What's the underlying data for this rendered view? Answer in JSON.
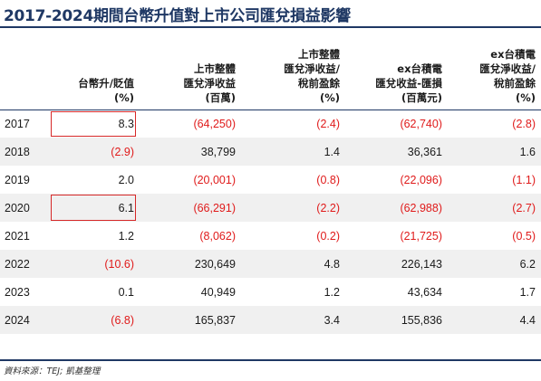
{
  "title": "2017-2024期間台幣升值對上市公司匯兌損益影響",
  "headers": [
    [
      ""
    ],
    [
      "台幣升/貶值",
      "(%)"
    ],
    [
      "上市整體",
      "匯兌淨收益",
      "(百萬)"
    ],
    [
      "上市整體",
      "匯兌淨收益/",
      "稅前盈餘",
      "(%)"
    ],
    [
      "ex台積電",
      "匯兌收益-匯損",
      "(百萬元)"
    ],
    [
      "ex台積電",
      "匯兌淨收益/",
      "稅前盈餘",
      "(%)"
    ]
  ],
  "rows": [
    {
      "year": "2017",
      "twd": "8.3",
      "net": "(64,250)",
      "net_pct": "(2.4)",
      "ex_net": "(62,740)",
      "ex_pct": "(2.8)"
    },
    {
      "year": "2018",
      "twd": "(2.9)",
      "net": "38,799",
      "net_pct": "1.4",
      "ex_net": "36,361",
      "ex_pct": "1.6"
    },
    {
      "year": "2019",
      "twd": "2.0",
      "net": "(20,001)",
      "net_pct": "(0.8)",
      "ex_net": "(22,096)",
      "ex_pct": "(1.1)"
    },
    {
      "year": "2020",
      "twd": "6.1",
      "net": "(66,291)",
      "net_pct": "(2.2)",
      "ex_net": "(62,988)",
      "ex_pct": "(2.7)"
    },
    {
      "year": "2021",
      "twd": "1.2",
      "net": "(8,062)",
      "net_pct": "(0.2)",
      "ex_net": "(21,725)",
      "ex_pct": "(0.5)"
    },
    {
      "year": "2022",
      "twd": "(10.6)",
      "net": "230,649",
      "net_pct": "4.8",
      "ex_net": "226,143",
      "ex_pct": "6.2"
    },
    {
      "year": "2023",
      "twd": "0.1",
      "net": "40,949",
      "net_pct": "1.2",
      "ex_net": "43,634",
      "ex_pct": "1.7"
    },
    {
      "year": "2024",
      "twd": "(6.8)",
      "net": "165,837",
      "net_pct": "3.4",
      "ex_net": "155,836",
      "ex_pct": "4.4"
    }
  ],
  "highlighted_years": [
    "2017",
    "2020"
  ],
  "source": "資料來源：TEJ; 凱基整理",
  "colors": {
    "title": "#1f3864",
    "negative": "#e01b1b",
    "highlight_box": "#d62828",
    "stripe": "#f0f0f0"
  }
}
